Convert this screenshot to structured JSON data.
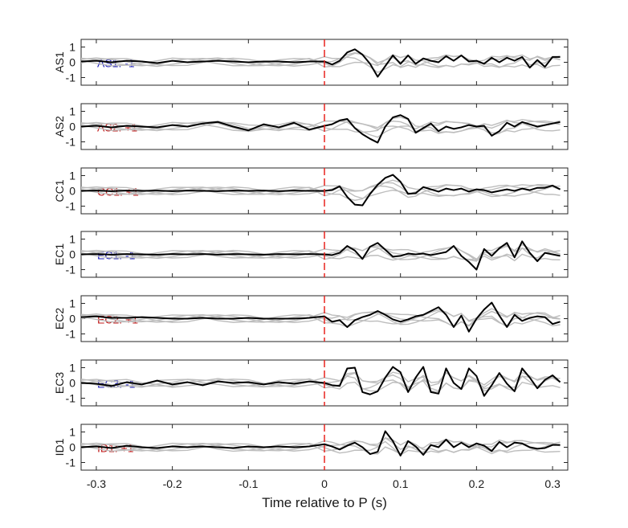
{
  "figure": {
    "xlabel": "Time relative to P (s)"
  },
  "chart_data": {
    "type": "line",
    "xlim": [
      -0.32,
      0.32
    ],
    "ylim": [
      -1.5,
      1.5
    ],
    "xticks": [
      -0.3,
      -0.2,
      -0.1,
      0,
      0.1,
      0.2,
      0.3
    ],
    "xtick_labels": [
      "-0.3",
      "-0.2",
      "-0.1",
      "0",
      "0.1",
      "0.2",
      "0.3"
    ],
    "yticks": [
      1,
      0,
      -1
    ],
    "ytick_labels": [
      "1",
      "0",
      "-1"
    ],
    "pick_time": 0,
    "pick_color": "#e8231f",
    "trace_color": "#000000",
    "background_trace_color": "#bdbdbd",
    "grid": false,
    "panels": [
      {
        "ylabel": "AS1",
        "annotation": "AS1: -1",
        "annotation_color": "#1d1db8",
        "series": [
          {
            "x": [
              -0.32,
              -0.3,
              -0.28,
              -0.26,
              -0.24,
              -0.22,
              -0.2,
              -0.18,
              -0.16,
              -0.14,
              -0.12,
              -0.1,
              -0.08,
              -0.06,
              -0.04,
              -0.02,
              0,
              0.01,
              0.02,
              0.03,
              0.04,
              0.05,
              0.06,
              0.07,
              0.08,
              0.09,
              0.1,
              0.11,
              0.12,
              0.13,
              0.14,
              0.15,
              0.16,
              0.17,
              0.18,
              0.19,
              0.2,
              0.21,
              0.22,
              0.23,
              0.24,
              0.25,
              0.26,
              0.27,
              0.28,
              0.29,
              0.3,
              0.31
            ],
            "y": [
              0.05,
              0.1,
              0.0,
              0.1,
              0.05,
              -0.05,
              0.1,
              0.0,
              0.05,
              0.1,
              0.05,
              0.0,
              0.05,
              0.05,
              0.0,
              0.05,
              0.05,
              -0.15,
              0.1,
              0.65,
              0.85,
              0.5,
              -0.1,
              -0.95,
              -0.25,
              0.45,
              -0.1,
              0.45,
              -0.1,
              0.25,
              0.1,
              0.0,
              0.4,
              0.1,
              0.45,
              0.05,
              0.1,
              -0.1,
              0.3,
              0.0,
              0.3,
              0.1,
              0.35,
              -0.35,
              0.15,
              -0.3,
              0.35,
              0.35
            ]
          }
        ]
      },
      {
        "ylabel": "AS2",
        "annotation": "AS2: +1",
        "annotation_color": "#c01818",
        "series": [
          {
            "x": [
              -0.32,
              -0.3,
              -0.28,
              -0.26,
              -0.24,
              -0.22,
              -0.2,
              -0.18,
              -0.16,
              -0.14,
              -0.12,
              -0.1,
              -0.08,
              -0.06,
              -0.04,
              -0.02,
              0,
              0.01,
              0.02,
              0.03,
              0.04,
              0.05,
              0.06,
              0.07,
              0.08,
              0.09,
              0.1,
              0.11,
              0.12,
              0.13,
              0.14,
              0.15,
              0.16,
              0.17,
              0.18,
              0.19,
              0.2,
              0.21,
              0.22,
              0.23,
              0.24,
              0.25,
              0.26,
              0.27,
              0.28,
              0.29,
              0.3,
              0.31
            ],
            "y": [
              0.0,
              0.05,
              -0.05,
              0.05,
              0.0,
              -0.05,
              0.1,
              0.0,
              0.2,
              0.3,
              0.0,
              -0.25,
              0.15,
              -0.05,
              0.25,
              -0.2,
              0.05,
              0.15,
              0.4,
              0.5,
              -0.1,
              -0.5,
              -0.8,
              -1.05,
              0.0,
              0.6,
              0.75,
              0.5,
              -0.4,
              -0.1,
              0.2,
              -0.3,
              0.0,
              -0.15,
              -0.05,
              0.1,
              0.0,
              0.05,
              -0.6,
              -0.3,
              0.25,
              0.0,
              0.3,
              0.15,
              0.0,
              0.1,
              0.2,
              0.3
            ]
          }
        ]
      },
      {
        "ylabel": "CC1",
        "annotation": "CC1: +1",
        "annotation_color": "#c01818",
        "series": [
          {
            "x": [
              -0.32,
              -0.3,
              -0.28,
              -0.26,
              -0.24,
              -0.22,
              -0.2,
              -0.18,
              -0.16,
              -0.14,
              -0.12,
              -0.1,
              -0.08,
              -0.06,
              -0.04,
              -0.02,
              0,
              0.01,
              0.02,
              0.03,
              0.04,
              0.05,
              0.06,
              0.07,
              0.08,
              0.09,
              0.1,
              0.11,
              0.12,
              0.13,
              0.14,
              0.15,
              0.16,
              0.17,
              0.18,
              0.19,
              0.2,
              0.21,
              0.22,
              0.23,
              0.24,
              0.25,
              0.26,
              0.27,
              0.28,
              0.29,
              0.3,
              0.31
            ],
            "y": [
              0.0,
              0.02,
              -0.02,
              0.02,
              0.0,
              0.02,
              -0.02,
              0.02,
              0.0,
              -0.02,
              0.02,
              0.0,
              0.02,
              -0.02,
              0.02,
              0.0,
              0.0,
              0.05,
              0.3,
              -0.4,
              -0.9,
              -0.95,
              -0.2,
              0.4,
              0.85,
              1.05,
              0.6,
              -0.2,
              -0.15,
              0.25,
              0.1,
              -0.05,
              0.15,
              0.05,
              0.15,
              -0.05,
              0.1,
              0.05,
              -0.1,
              0.0,
              0.1,
              0.0,
              0.15,
              0.05,
              0.2,
              0.2,
              0.35,
              0.1
            ]
          }
        ]
      },
      {
        "ylabel": "EC1",
        "annotation": "EC1: -1",
        "annotation_color": "#1d1db8",
        "series": [
          {
            "x": [
              -0.32,
              -0.3,
              -0.28,
              -0.26,
              -0.24,
              -0.22,
              -0.2,
              -0.18,
              -0.16,
              -0.14,
              -0.12,
              -0.1,
              -0.08,
              -0.06,
              -0.04,
              -0.02,
              0,
              0.01,
              0.02,
              0.03,
              0.04,
              0.05,
              0.06,
              0.07,
              0.08,
              0.09,
              0.1,
              0.11,
              0.12,
              0.13,
              0.14,
              0.15,
              0.16,
              0.17,
              0.18,
              0.19,
              0.2,
              0.21,
              0.22,
              0.23,
              0.24,
              0.25,
              0.26,
              0.27,
              0.28,
              0.29,
              0.3,
              0.31
            ],
            "y": [
              0.0,
              0.02,
              -0.02,
              0.02,
              0.0,
              -0.02,
              0.02,
              0.0,
              0.02,
              -0.02,
              0.02,
              0.0,
              -0.02,
              0.02,
              0.0,
              0.02,
              0.0,
              -0.05,
              0.1,
              0.55,
              0.25,
              -0.3,
              0.5,
              0.75,
              0.3,
              -0.15,
              -0.1,
              0.05,
              0.0,
              0.05,
              -0.05,
              0.05,
              0.15,
              0.55,
              -0.1,
              -0.5,
              -1.0,
              0.35,
              -0.1,
              0.4,
              0.75,
              -0.2,
              0.85,
              0.1,
              -0.45,
              0.1,
              0.0,
              -0.1
            ]
          }
        ]
      },
      {
        "ylabel": "EC2",
        "annotation": "EC2: +1",
        "annotation_color": "#c01818",
        "series": [
          {
            "x": [
              -0.32,
              -0.3,
              -0.28,
              -0.26,
              -0.24,
              -0.22,
              -0.2,
              -0.18,
              -0.16,
              -0.14,
              -0.12,
              -0.1,
              -0.08,
              -0.06,
              -0.04,
              -0.02,
              0,
              0.01,
              0.02,
              0.03,
              0.04,
              0.05,
              0.06,
              0.07,
              0.08,
              0.09,
              0.1,
              0.11,
              0.12,
              0.13,
              0.14,
              0.15,
              0.16,
              0.17,
              0.18,
              0.19,
              0.2,
              0.21,
              0.22,
              0.23,
              0.24,
              0.25,
              0.26,
              0.27,
              0.28,
              0.29,
              0.3,
              0.31
            ],
            "y": [
              0.1,
              0.15,
              0.05,
              0.05,
              0.1,
              0.05,
              0.0,
              0.0,
              0.05,
              0.0,
              0.0,
              0.05,
              0.0,
              0.0,
              0.0,
              0.05,
              0.15,
              -0.2,
              -0.1,
              -0.55,
              -0.1,
              0.1,
              0.25,
              0.5,
              0.25,
              -0.05,
              -0.2,
              -0.05,
              0.15,
              0.25,
              0.5,
              0.75,
              0.25,
              -0.55,
              0.2,
              -0.85,
              0.0,
              0.6,
              1.05,
              0.2,
              -0.55,
              0.25,
              -0.15,
              0.05,
              0.15,
              0.1,
              -0.35,
              -0.2
            ]
          }
        ]
      },
      {
        "ylabel": "EC3",
        "annotation": "EC3: -1",
        "annotation_color": "#1d1db8",
        "series": [
          {
            "x": [
              -0.32,
              -0.3,
              -0.28,
              -0.26,
              -0.24,
              -0.22,
              -0.2,
              -0.18,
              -0.16,
              -0.14,
              -0.12,
              -0.1,
              -0.08,
              -0.06,
              -0.04,
              -0.02,
              0,
              0.01,
              0.02,
              0.03,
              0.04,
              0.05,
              0.06,
              0.07,
              0.08,
              0.09,
              0.1,
              0.11,
              0.12,
              0.13,
              0.14,
              0.15,
              0.16,
              0.17,
              0.18,
              0.19,
              0.2,
              0.21,
              0.22,
              0.23,
              0.24,
              0.25,
              0.26,
              0.27,
              0.28,
              0.29,
              0.3,
              0.31
            ],
            "y": [
              0.0,
              -0.05,
              -0.2,
              0.05,
              -0.1,
              0.15,
              -0.1,
              0.05,
              -0.15,
              0.1,
              0.0,
              0.05,
              -0.1,
              0.05,
              -0.05,
              0.1,
              0.0,
              -0.15,
              -0.2,
              0.95,
              1.0,
              -0.6,
              -0.75,
              -0.55,
              0.35,
              1.05,
              0.7,
              -0.6,
              0.35,
              1.05,
              -0.6,
              -0.7,
              0.95,
              0.0,
              -0.4,
              0.95,
              0.45,
              -0.85,
              -0.15,
              0.65,
              -0.05,
              -0.55,
              0.95,
              0.35,
              -0.35,
              0.2,
              0.5,
              0.05
            ]
          }
        ]
      },
      {
        "ylabel": "ID1",
        "annotation": "ID1: +1",
        "annotation_color": "#c01818",
        "series": [
          {
            "x": [
              -0.32,
              -0.3,
              -0.28,
              -0.26,
              -0.24,
              -0.22,
              -0.2,
              -0.18,
              -0.16,
              -0.14,
              -0.12,
              -0.1,
              -0.08,
              -0.06,
              -0.04,
              -0.02,
              0,
              0.01,
              0.02,
              0.03,
              0.04,
              0.05,
              0.06,
              0.07,
              0.08,
              0.09,
              0.1,
              0.11,
              0.12,
              0.13,
              0.14,
              0.15,
              0.16,
              0.17,
              0.18,
              0.19,
              0.2,
              0.21,
              0.22,
              0.23,
              0.24,
              0.25,
              0.26,
              0.27,
              0.28,
              0.29,
              0.3,
              0.31
            ],
            "y": [
              0.0,
              0.05,
              -0.05,
              0.1,
              0.0,
              -0.05,
              0.05,
              0.0,
              0.05,
              0.0,
              -0.05,
              0.05,
              0.0,
              0.05,
              0.0,
              0.05,
              0.2,
              0.05,
              -0.15,
              0.1,
              0.3,
              0.0,
              -0.45,
              -0.3,
              1.05,
              0.4,
              -0.55,
              0.4,
              0.05,
              -0.5,
              0.15,
              0.0,
              0.5,
              0.0,
              0.3,
              0.0,
              0.25,
              0.1,
              -0.25,
              0.35,
              0.0,
              0.3,
              0.25,
              0.0,
              -0.1,
              -0.05,
              0.15,
              0.15
            ]
          }
        ]
      }
    ]
  }
}
